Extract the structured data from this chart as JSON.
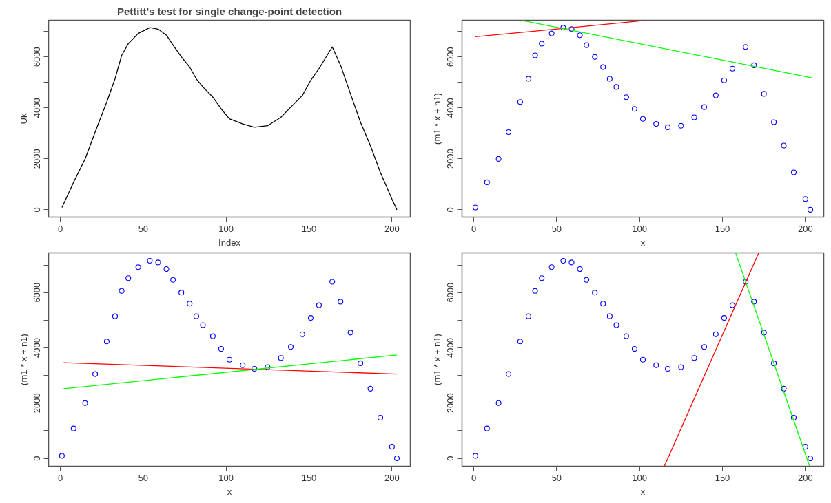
{
  "chart_data": [
    {
      "type": "line",
      "title": "Pettitt's test for single change-point detection",
      "xlabel": "Index",
      "ylabel": "Uk",
      "x": [
        1,
        8,
        15,
        21,
        28,
        33,
        37,
        41,
        47,
        54,
        59,
        64,
        68,
        73,
        78,
        82,
        86,
        92,
        97,
        102,
        110,
        117,
        125,
        133,
        139,
        146,
        151,
        156,
        164,
        169,
        175,
        181,
        187,
        193,
        200,
        203
      ],
      "series": [
        {
          "color": "#000000",
          "values": [
            90,
            1080,
            2000,
            3050,
            4230,
            5140,
            6060,
            6520,
            6920,
            7150,
            7090,
            6850,
            6460,
            6000,
            5600,
            5140,
            4820,
            4420,
            3960,
            3570,
            3370,
            3240,
            3300,
            3630,
            4030,
            4490,
            5080,
            5540,
            6390,
            5670,
            4550,
            3440,
            2520,
            1470,
            420,
            0
          ]
        }
      ],
      "xlim": [
        -7.08,
        211.08
      ],
      "ylim": [
        -286,
        7436
      ],
      "xticks": [
        0,
        50,
        100,
        150,
        200
      ],
      "yticks": [
        0,
        {
          "value": 1000,
          "label": null
        },
        2000,
        {
          "value": 3000,
          "label": null
        },
        4000,
        {
          "value": 5000,
          "label": null
        },
        6000,
        {
          "value": 7000,
          "label": null
        }
      ]
    },
    {
      "type": "scatter",
      "xlabel": "x",
      "ylabel": "(m1 * x + n1)",
      "x": [
        1,
        8,
        15,
        21,
        28,
        33,
        37,
        41,
        47,
        54,
        59,
        64,
        68,
        73,
        78,
        82,
        86,
        92,
        97,
        102,
        110,
        117,
        125,
        133,
        139,
        146,
        151,
        156,
        164,
        169,
        175,
        181,
        187,
        193,
        200,
        203
      ],
      "series": [
        {
          "color": "#0000ff",
          "marker": "circle",
          "values": [
            90,
            1080,
            2000,
            3050,
            4230,
            5140,
            6060,
            6520,
            6920,
            7150,
            7090,
            6850,
            6460,
            6000,
            5600,
            5140,
            4820,
            4420,
            3960,
            3570,
            3370,
            3240,
            3300,
            3630,
            4030,
            4490,
            5080,
            5540,
            6390,
            5670,
            4550,
            3440,
            2520,
            1470,
            420,
            0
          ]
        },
        {
          "type": "line",
          "color": "#ff0000",
          "x": [
            1,
            104
          ],
          "values": [
            6790,
            7430
          ]
        },
        {
          "type": "line",
          "color": "#00ff00",
          "x": [
            29,
            204
          ],
          "values": [
            7430,
            5180
          ]
        }
      ],
      "xlim": [
        -7.08,
        211.08
      ],
      "ylim": [
        -286,
        7436
      ],
      "xticks": [
        0,
        50,
        100,
        150,
        200
      ],
      "yticks": [
        0,
        {
          "value": 1000,
          "label": null
        },
        2000,
        {
          "value": 3000,
          "label": null
        },
        4000,
        {
          "value": 5000,
          "label": null
        },
        6000,
        {
          "value": 7000,
          "label": null
        }
      ]
    },
    {
      "type": "scatter",
      "xlabel": "x",
      "ylabel": "(m1 * x + n1)",
      "x": [
        1,
        8,
        15,
        21,
        28,
        33,
        37,
        41,
        47,
        54,
        59,
        64,
        68,
        73,
        78,
        82,
        86,
        92,
        97,
        102,
        110,
        117,
        125,
        133,
        139,
        146,
        151,
        156,
        164,
        169,
        175,
        181,
        187,
        193,
        200,
        203
      ],
      "series": [
        {
          "color": "#0000ff",
          "marker": "circle",
          "values": [
            90,
            1080,
            2000,
            3050,
            4230,
            5140,
            6060,
            6520,
            6920,
            7150,
            7090,
            6850,
            6460,
            6000,
            5600,
            5140,
            4820,
            4420,
            3960,
            3570,
            3370,
            3240,
            3300,
            3630,
            4030,
            4490,
            5080,
            5540,
            6390,
            5670,
            4550,
            3440,
            2520,
            1470,
            420,
            0
          ]
        },
        {
          "type": "line",
          "color": "#ff0000",
          "x": [
            2,
            203
          ],
          "values": [
            3460,
            3050
          ]
        },
        {
          "type": "line",
          "color": "#00ff00",
          "x": [
            2,
            203
          ],
          "values": [
            2520,
            3740
          ]
        }
      ],
      "xlim": [
        -7.08,
        211.08
      ],
      "ylim": [
        -286,
        7436
      ],
      "xticks": [
        0,
        50,
        100,
        150,
        200
      ],
      "yticks": [
        0,
        {
          "value": 1000,
          "label": null
        },
        2000,
        {
          "value": 3000,
          "label": null
        },
        4000,
        {
          "value": 5000,
          "label": null
        },
        6000,
        {
          "value": 7000,
          "label": null
        }
      ]
    },
    {
      "type": "scatter",
      "xlabel": "x",
      "ylabel": "(m1 * x + n1)",
      "x": [
        1,
        8,
        15,
        21,
        28,
        33,
        37,
        41,
        47,
        54,
        59,
        64,
        68,
        73,
        78,
        82,
        86,
        92,
        97,
        102,
        110,
        117,
        125,
        133,
        139,
        146,
        151,
        156,
        164,
        169,
        175,
        181,
        187,
        193,
        200,
        203
      ],
      "series": [
        {
          "color": "#0000ff",
          "marker": "circle",
          "values": [
            90,
            1080,
            2000,
            3050,
            4230,
            5140,
            6060,
            6520,
            6920,
            7150,
            7090,
            6850,
            6460,
            6000,
            5600,
            5140,
            4820,
            4420,
            3960,
            3570,
            3370,
            3240,
            3300,
            3630,
            4030,
            4490,
            5080,
            5540,
            6390,
            5670,
            4550,
            3440,
            2520,
            1470,
            420,
            0
          ]
        },
        {
          "type": "line",
          "color": "#ff0000",
          "x": [
            115,
            171.7
          ],
          "values": [
            -280,
            7420
          ]
        },
        {
          "type": "line",
          "color": "#00ff00",
          "x": [
            158,
            202.5
          ],
          "values": [
            7420,
            -280
          ]
        }
      ],
      "xlim": [
        -7.08,
        211.08
      ],
      "ylim": [
        -286,
        7436
      ],
      "xticks": [
        0,
        50,
        100,
        150,
        200
      ],
      "yticks": [
        0,
        {
          "value": 1000,
          "label": null
        },
        2000,
        {
          "value": 3000,
          "label": null
        },
        4000,
        {
          "value": 5000,
          "label": null
        },
        6000,
        {
          "value": 7000,
          "label": null
        }
      ]
    }
  ]
}
